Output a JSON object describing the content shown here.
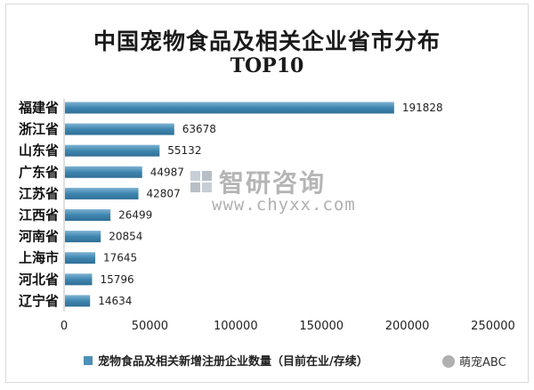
{
  "title": "中国宠物食品及相关企业省市分布",
  "subtitle": "TOP10",
  "watermark": {
    "name": "智研咨询",
    "url": "www.chyxx.com"
  },
  "source_badge": "萌宠ABC",
  "chart_data": {
    "type": "bar",
    "orientation": "horizontal",
    "categories": [
      "福建省",
      "浙江省",
      "山东省",
      "广东省",
      "江苏省",
      "江西省",
      "河南省",
      "上海市",
      "河北省",
      "辽宁省"
    ],
    "series": [
      {
        "name": "宠物食品及相关新增注册企业数量（目前在业/存续）",
        "values": [
          191828,
          63678,
          55132,
          44987,
          42807,
          26499,
          20854,
          17645,
          15796,
          14634
        ],
        "color": "#4b90b8"
      }
    ],
    "xlim": [
      0,
      250000
    ],
    "xticks": [
      0,
      50000,
      100000,
      150000,
      200000,
      250000
    ],
    "tick_labels": [
      "0",
      "50000",
      "100000",
      "150000",
      "200000",
      "250000"
    ],
    "grid": false,
    "legend": "bottom",
    "data_labels": true
  }
}
